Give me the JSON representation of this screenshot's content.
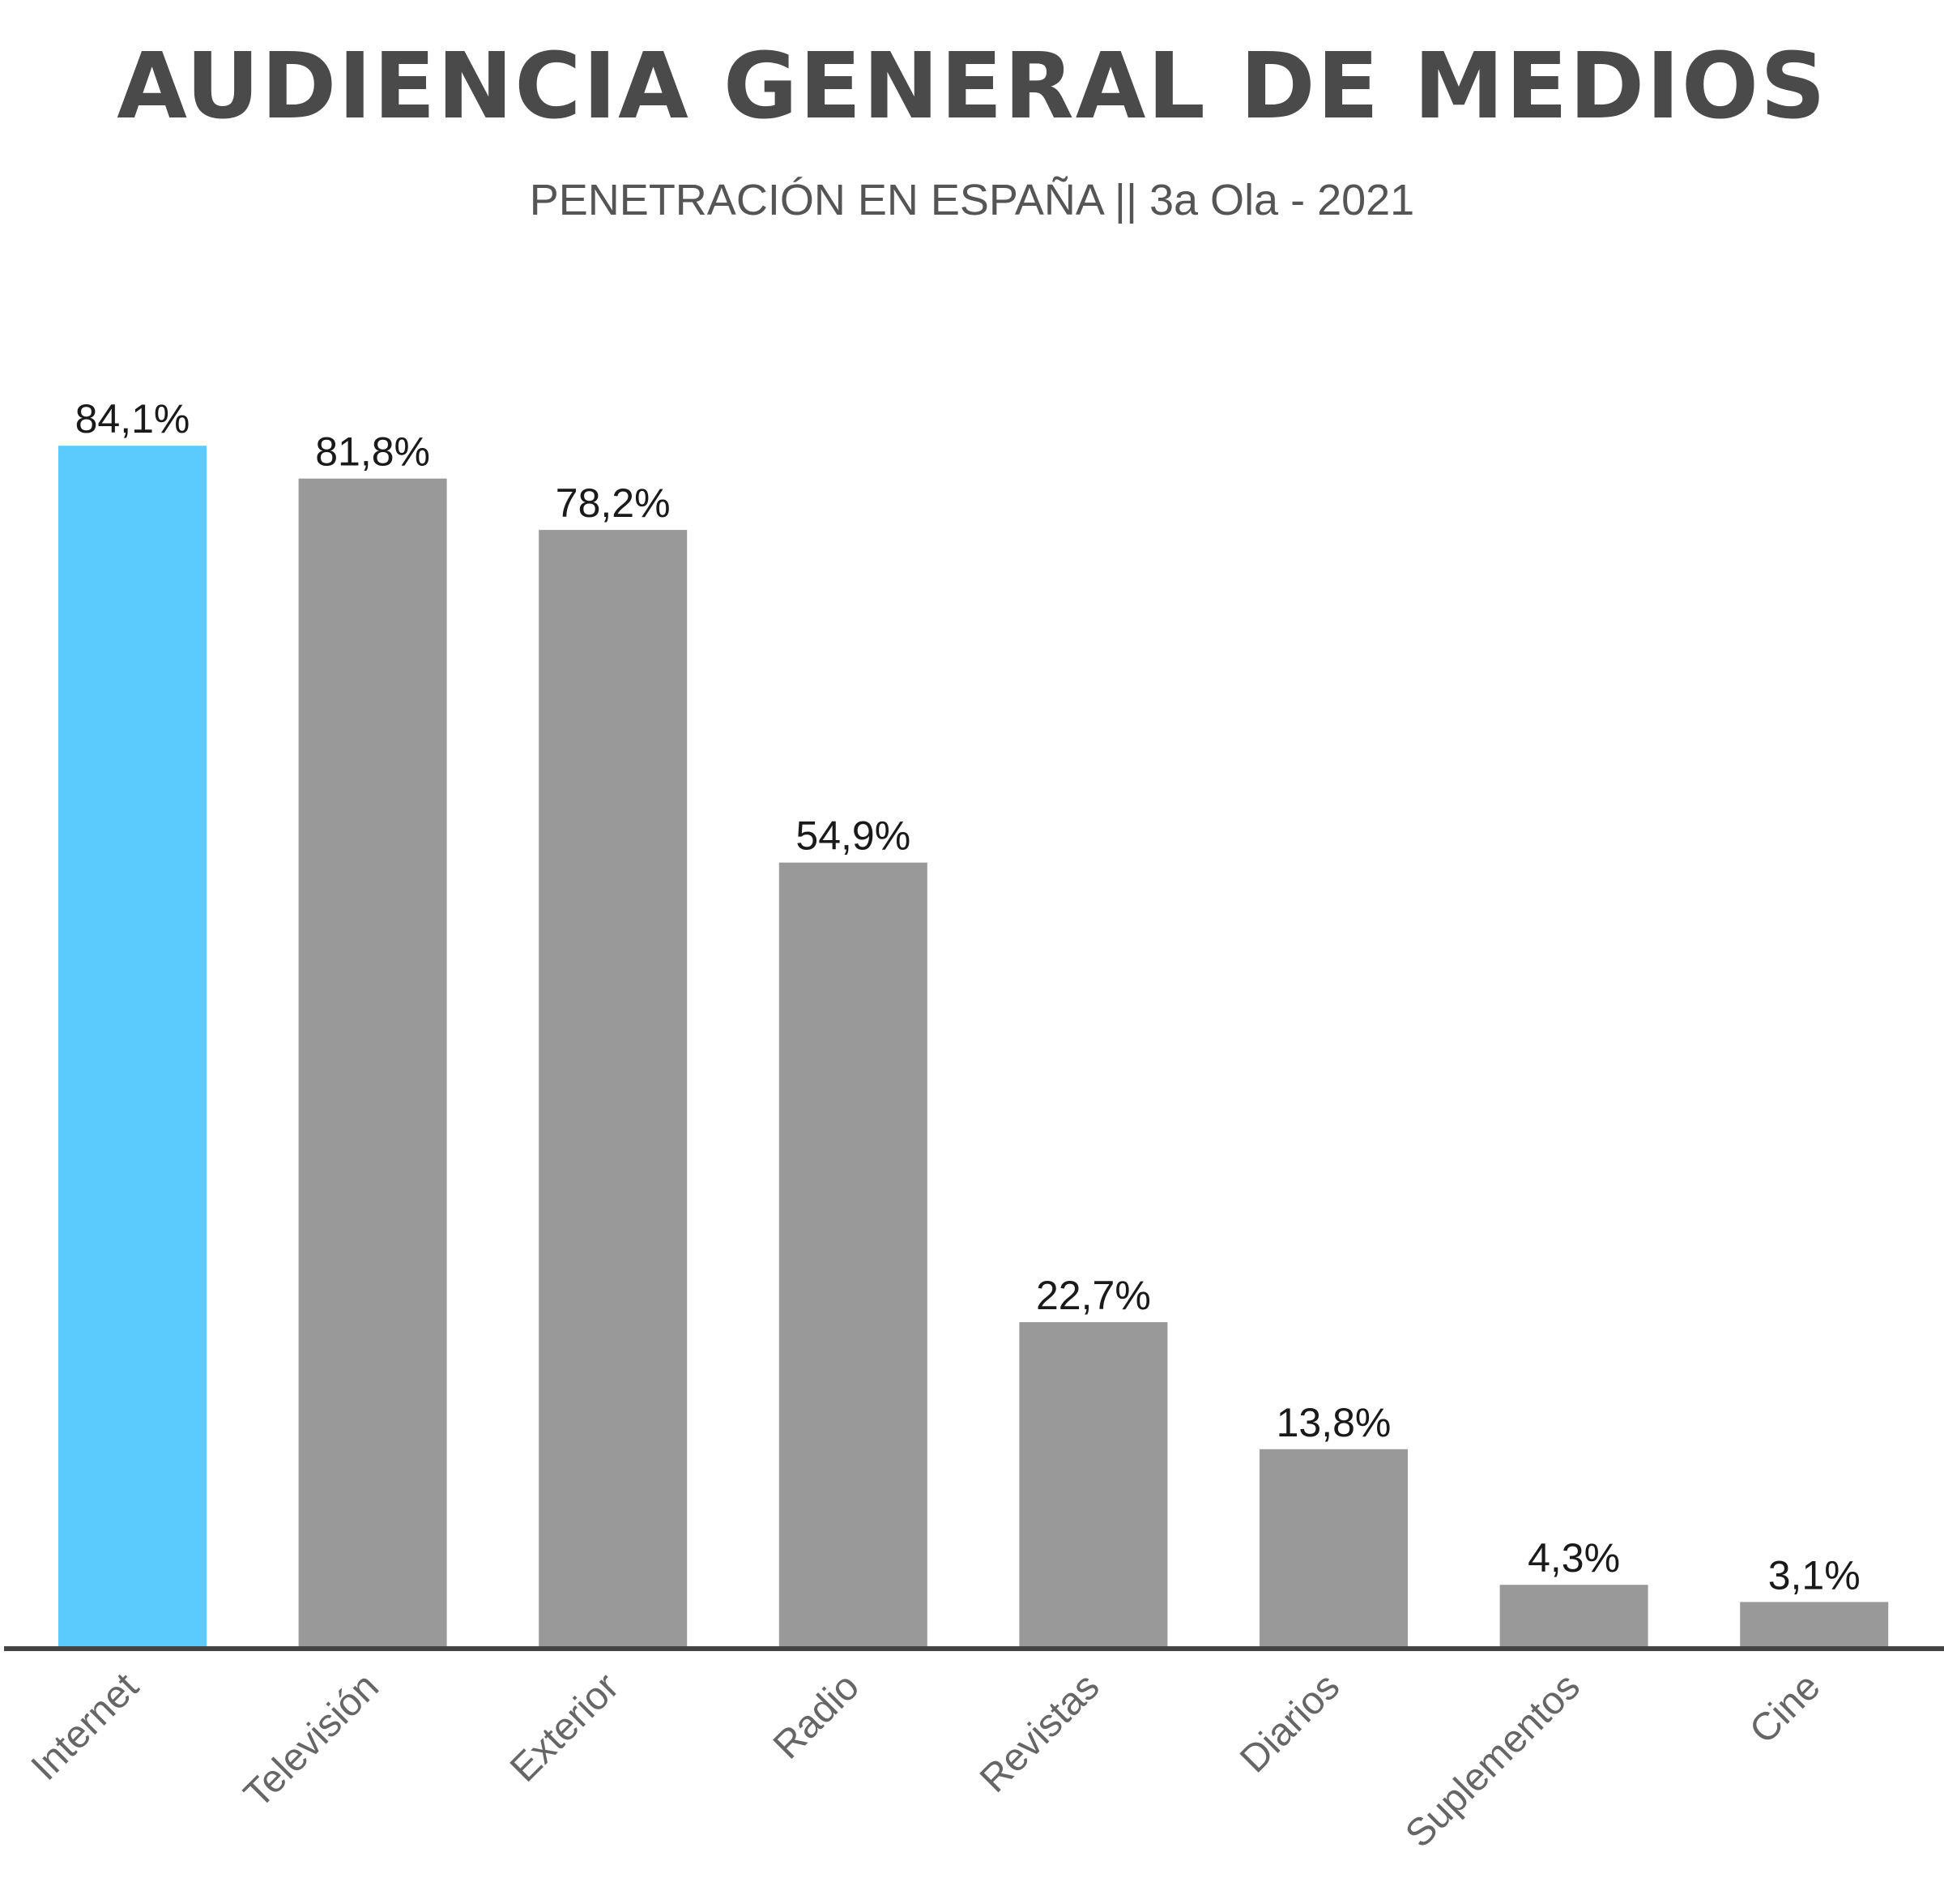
{
  "chart_data": {
    "type": "bar",
    "title": "AUDIENCIA GENERAL DE MEDIOS",
    "subtitle": "PENETRACIÓN EN ESPAÑA || 3a Ola - 2021",
    "xlabel": "",
    "ylabel": "",
    "ylim": [
      0,
      100
    ],
    "grid": false,
    "categories": [
      "Internet",
      "Televisión",
      "Exterior",
      "Radio",
      "Revistas",
      "Diarios",
      "Suplementos",
      "Cine"
    ],
    "values": [
      84.1,
      81.8,
      78.2,
      54.9,
      22.7,
      13.8,
      4.3,
      3.1
    ],
    "value_labels": [
      "84,1%",
      "81,8%",
      "78,2%",
      "54,9%",
      "22,7%",
      "13,8%",
      "4,3%",
      "3,1%"
    ],
    "highlight_category": "Internet",
    "colors": {
      "highlight": "#5bcbfd",
      "bar": "#999999",
      "axis": "#444444",
      "title": "#4a4a4a"
    }
  }
}
